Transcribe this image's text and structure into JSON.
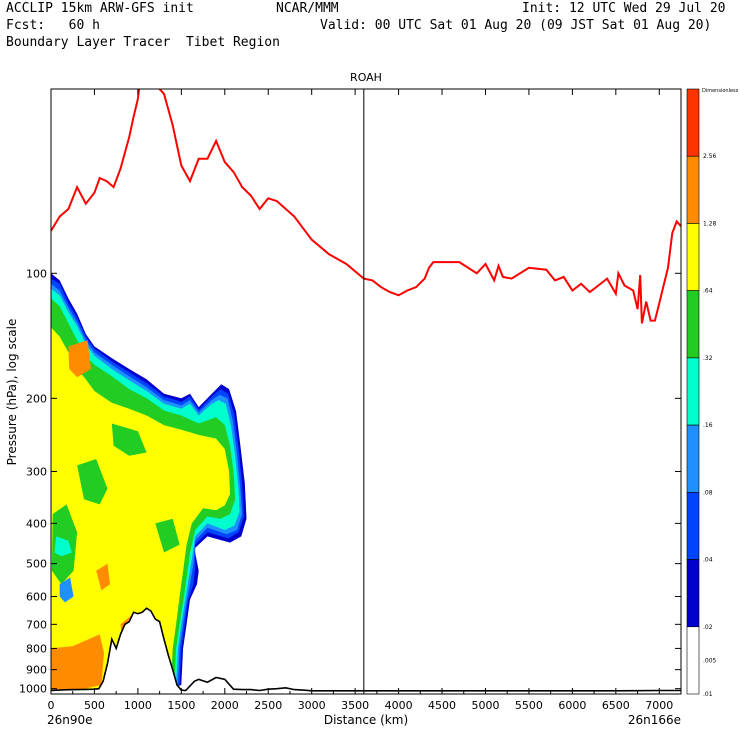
{
  "header": {
    "line1_left": "ACCLIP 15km ARW-GFS init",
    "line1_mid": "NCAR/MMM",
    "line1_right": "Init: 12 UTC Wed 29 Jul 20",
    "line2_left": "Fcst:   60 h",
    "line2_right": "Valid: 00 UTC Sat 01 Aug 20 (09 JST Sat 01 Aug 20)",
    "line3_left": "Boundary Layer Tracer  Tibet Region"
  },
  "chart_data": {
    "type": "heatmap",
    "title": "ROAH",
    "xlabel": "Distance (km)",
    "ylabel": "Pressure (hPa), log scale",
    "xlim": [
      0,
      7250
    ],
    "ylim_hpa": [
      1030,
      36
    ],
    "y_scale": "log",
    "x_ticks": [
      0,
      500,
      1000,
      1500,
      2000,
      2500,
      3000,
      3500,
      4000,
      4500,
      5000,
      5500,
      6000,
      6500,
      7000
    ],
    "y_ticks": [
      100,
      200,
      300,
      400,
      500,
      600,
      700,
      800,
      900,
      1000
    ],
    "endpoints": {
      "left": "26n90e",
      "right": "26n166e"
    },
    "vertical_marker_km": 3600,
    "colorbar": {
      "title": "Dimensionless",
      "levels": [
        "2.56",
        "1.28",
        ".64",
        ".32",
        ".16",
        ".08",
        ".04",
        ".02",
        ".01",
        ".005"
      ],
      "colors": [
        "#ff3300",
        "#ff8c00",
        "#ffff00",
        "#22cc22",
        "#00ffcc",
        "#1e90ff",
        "#0044ff",
        "#0000cc",
        "#ffffff"
      ]
    },
    "contour_colors": {
      "l1": "#0000cc",
      "l2": "#0044ff",
      "l3": "#1e90ff",
      "l4": "#00ffcc",
      "l5": "#22cc22",
      "l6": "#ffff00",
      "l7": "#ff8c00"
    },
    "tropopause": {
      "color": "#ff0000",
      "x_km": [
        0,
        100,
        200,
        300,
        400,
        500,
        560,
        640,
        720,
        800,
        900,
        950,
        1000,
        1050,
        1100,
        1150,
        1200,
        1250,
        1300,
        1400,
        1500,
        1600,
        1700,
        1800,
        1900,
        2000,
        2100,
        2200,
        2300,
        2400,
        2500,
        2600,
        2800,
        3000,
        3200,
        3400,
        3600,
        3700,
        3800,
        3900,
        4000,
        4100,
        4200,
        4300,
        4350,
        4400,
        4500,
        4700,
        4900,
        5000,
        5100,
        5150,
        5200,
        5300,
        5500,
        5700,
        5800,
        5900,
        6000,
        6100,
        6200,
        6300,
        6400,
        6500,
        6530,
        6600,
        6700,
        6750,
        6780,
        6800,
        6850,
        6900,
        6950,
        7000,
        7050,
        7100,
        7150,
        7200,
        7250
      ],
      "p_hpa": [
        79,
        73,
        70,
        62,
        68,
        64,
        59,
        60,
        62,
        56,
        47,
        42,
        38,
        31,
        25,
        28,
        32,
        36,
        37,
        44,
        55,
        60,
        53,
        53,
        48,
        54,
        57,
        62,
        65,
        70,
        66,
        67,
        73,
        83,
        90,
        95,
        103,
        104,
        108,
        111,
        113,
        110,
        108,
        103,
        97,
        94,
        94,
        94,
        100,
        95,
        104,
        96,
        102,
        103,
        97,
        98,
        104,
        102,
        110,
        106,
        111,
        107,
        103,
        112,
        100,
        107,
        110,
        122,
        101,
        132,
        117,
        130,
        130,
        118,
        107,
        97,
        80,
        75,
        77
      ]
    },
    "terrain": {
      "color": "#000000",
      "x_km": [
        0,
        100,
        200,
        300,
        400,
        500,
        550,
        600,
        650,
        700,
        750,
        800,
        850,
        900,
        950,
        1000,
        1050,
        1100,
        1150,
        1200,
        1250,
        1300,
        1350,
        1400,
        1450,
        1500,
        1550,
        1600,
        1650,
        1700,
        1800,
        1900,
        2000,
        2100,
        2200,
        2300,
        2400,
        2500,
        2600,
        2700,
        2800,
        2900,
        3000,
        3500,
        4000,
        4500,
        5000,
        5500,
        6000,
        6500,
        7000,
        7250
      ],
      "p_hpa": [
        1010,
        1008,
        1006,
        1005,
        1004,
        1003,
        1000,
        960,
        870,
        760,
        800,
        740,
        700,
        690,
        655,
        660,
        655,
        640,
        650,
        680,
        690,
        760,
        830,
        900,
        980,
        1008,
        1010,
        985,
        960,
        950,
        965,
        940,
        950,
        1003,
        1005,
        1005,
        1010,
        1003,
        1000,
        995,
        1005,
        1008,
        1012,
        1012,
        1012,
        1012,
        1012,
        1012,
        1012,
        1012,
        1010,
        1010
      ]
    }
  }
}
